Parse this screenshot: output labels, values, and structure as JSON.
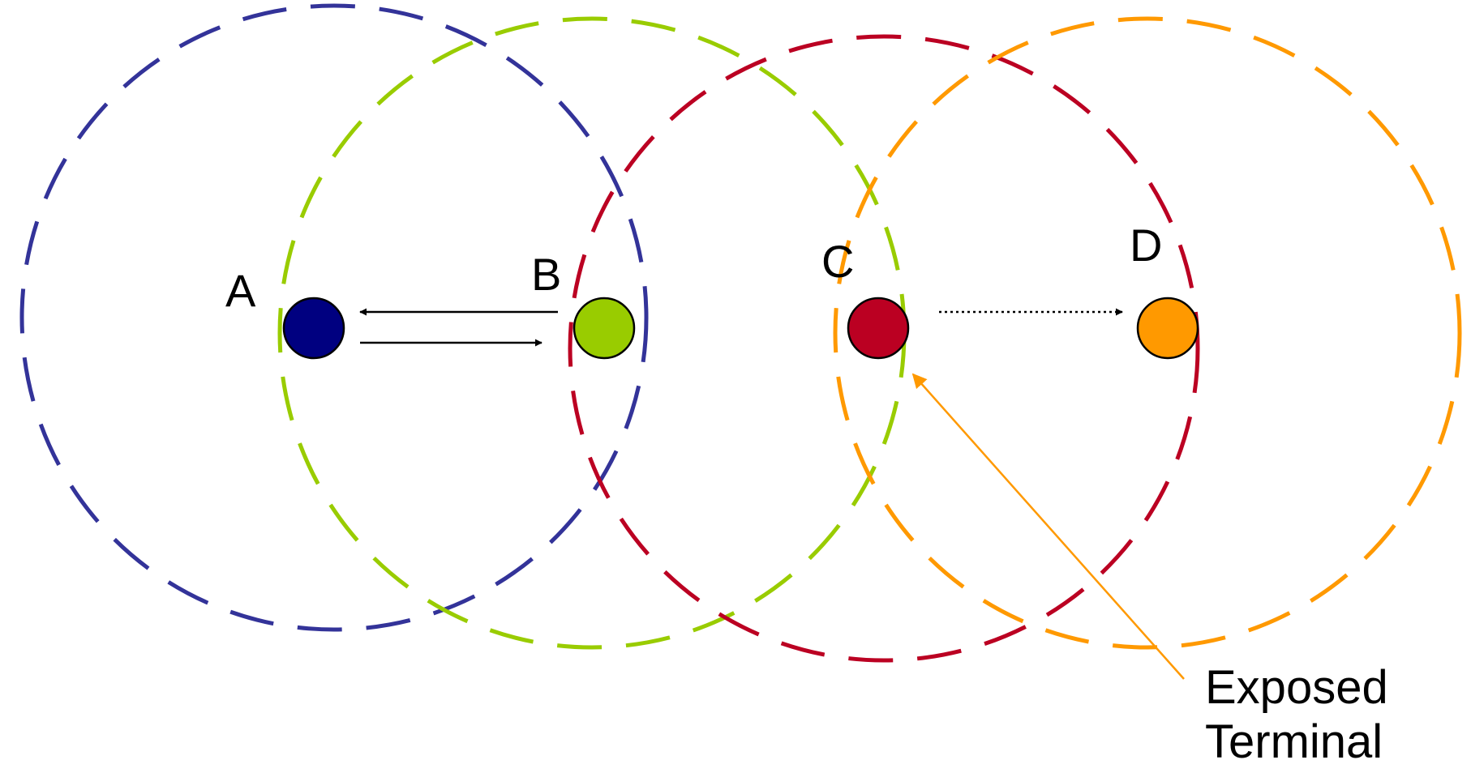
{
  "nodes": [
    {
      "id": "A",
      "label": "A",
      "color": "#000080",
      "range_color": "#333399"
    },
    {
      "id": "B",
      "label": "B",
      "color": "#99CC00",
      "range_color": "#99CC00"
    },
    {
      "id": "C",
      "label": "C",
      "color": "#BB0022",
      "range_color": "#BB0022"
    },
    {
      "id": "D",
      "label": "D",
      "color": "#FF9900",
      "range_color": "#FF9900"
    }
  ],
  "links": [
    {
      "from": "B",
      "to": "A",
      "style": "solid"
    },
    {
      "from": "A",
      "to": "B",
      "style": "solid"
    },
    {
      "from": "C",
      "to": "D",
      "style": "dotted"
    }
  ],
  "annotation": {
    "line1": "Exposed",
    "line2": "Terminal",
    "arrow_color": "#FF9900"
  }
}
